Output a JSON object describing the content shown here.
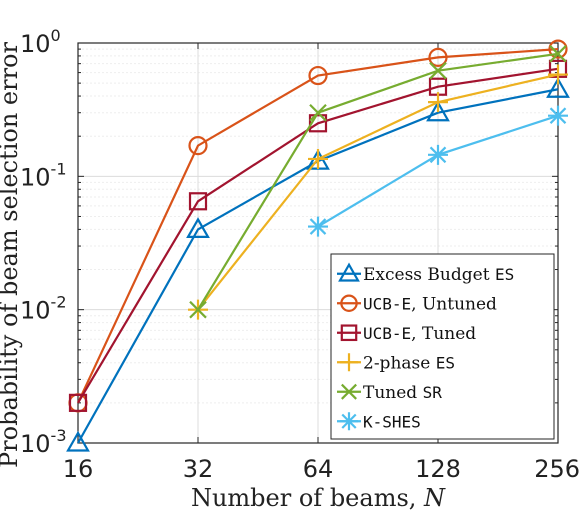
{
  "chart_data": {
    "type": "line",
    "xscale": "log2",
    "yscale": "log10",
    "xlabel": "Number of beams, N",
    "ylabel": "Probability of beam selection error",
    "x_ticks": [
      16,
      32,
      64,
      128,
      256
    ],
    "y_ticks": [
      0.001,
      0.01,
      0.1,
      1
    ],
    "y_tick_labels": [
      {
        "base": "10",
        "exp": "-3"
      },
      {
        "base": "10",
        "exp": "-2"
      },
      {
        "base": "10",
        "exp": "-1"
      },
      {
        "base": "10",
        "exp": "0"
      }
    ],
    "xlim": [
      16,
      256
    ],
    "ylim": [
      0.001,
      1
    ],
    "grid": true,
    "legend_position": "bottom-right",
    "series": [
      {
        "name": "Excess Budget ES",
        "legend_parts": [
          {
            "t": "Excess Budget "
          },
          {
            "t": "ES",
            "mono": true
          }
        ],
        "color": "#0072BD",
        "marker": "triangle",
        "x": [
          16,
          32,
          64,
          128,
          256
        ],
        "y": [
          0.001,
          0.04,
          0.13,
          0.3,
          0.45
        ]
      },
      {
        "name": "UCB-E, Untuned",
        "legend_parts": [
          {
            "t": "UCB-E",
            "mono": true
          },
          {
            "t": ", Untuned"
          }
        ],
        "color": "#D95319",
        "marker": "circle",
        "x": [
          16,
          32,
          64,
          128,
          256
        ],
        "y": [
          0.002,
          0.17,
          0.57,
          0.78,
          0.9
        ]
      },
      {
        "name": "UCB-E, Tuned",
        "legend_parts": [
          {
            "t": "UCB-E",
            "mono": true
          },
          {
            "t": ", Tuned"
          }
        ],
        "color": "#A2142F",
        "marker": "square",
        "x": [
          16,
          32,
          64,
          128,
          256
        ],
        "y": [
          0.002,
          0.065,
          0.25,
          0.47,
          0.64
        ]
      },
      {
        "name": "2-phase ES",
        "legend_parts": [
          {
            "t": "2-phase "
          },
          {
            "t": "ES",
            "mono": true
          }
        ],
        "color": "#EDB120",
        "marker": "plus",
        "x": [
          32,
          64,
          128,
          256
        ],
        "y": [
          0.01,
          0.135,
          0.36,
          0.58
        ]
      },
      {
        "name": "Tuned SR",
        "legend_parts": [
          {
            "t": "Tuned "
          },
          {
            "t": "SR",
            "mono": true
          }
        ],
        "color": "#77AC30",
        "marker": "x",
        "x": [
          32,
          64,
          128,
          256
        ],
        "y": [
          0.01,
          0.3,
          0.62,
          0.83
        ]
      },
      {
        "name": "K-SHES",
        "legend_parts": [
          {
            "t": "K-SHES",
            "mono": true
          }
        ],
        "color": "#4DBEEE",
        "marker": "asterisk",
        "x": [
          64,
          128,
          256
        ],
        "y": [
          0.042,
          0.145,
          0.285
        ]
      }
    ]
  }
}
